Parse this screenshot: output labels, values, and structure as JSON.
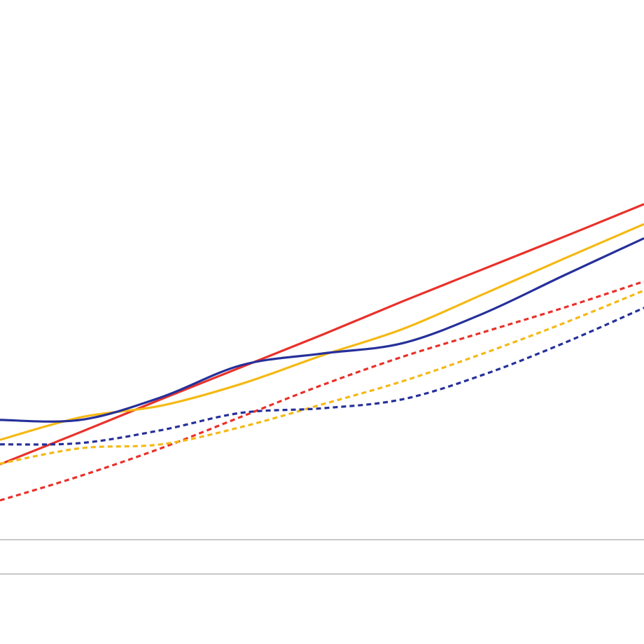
{
  "chart_data": {
    "type": "line",
    "x": [
      0,
      1,
      2,
      3,
      4,
      5,
      6,
      7,
      8
    ],
    "xlim": [
      0,
      8
    ],
    "ylim": [
      0,
      100
    ],
    "smooth": true,
    "series": [
      {
        "color": "#e8312a",
        "dashed": false,
        "values": [
          27.9,
          32.9,
          38.0,
          43.0,
          48.0,
          53.2,
          58.2,
          63.2,
          68.3
        ]
      },
      {
        "color": "#f5b914",
        "dashed": false,
        "values": [
          31.7,
          35.2,
          37.0,
          40.4,
          44.8,
          48.9,
          54.3,
          59.8,
          65.2
        ]
      },
      {
        "color": "#26309a",
        "dashed": false,
        "values": [
          34.8,
          34.8,
          38.3,
          43.3,
          45.1,
          46.7,
          51.3,
          57.2,
          63.0
        ]
      },
      {
        "color": "#e8312a",
        "dashed": true,
        "values": [
          22.3,
          26.1,
          30.4,
          35.3,
          40.2,
          44.6,
          48.4,
          52.2,
          56.3
        ]
      },
      {
        "color": "#f5b914",
        "dashed": true,
        "values": [
          28.0,
          30.4,
          31.0,
          33.7,
          37.2,
          40.8,
          45.1,
          49.8,
          54.9
        ]
      },
      {
        "color": "#26309a",
        "dashed": true,
        "values": [
          31.0,
          31.2,
          33.2,
          35.9,
          36.6,
          38.0,
          41.8,
          46.7,
          52.2
        ]
      }
    ]
  }
}
